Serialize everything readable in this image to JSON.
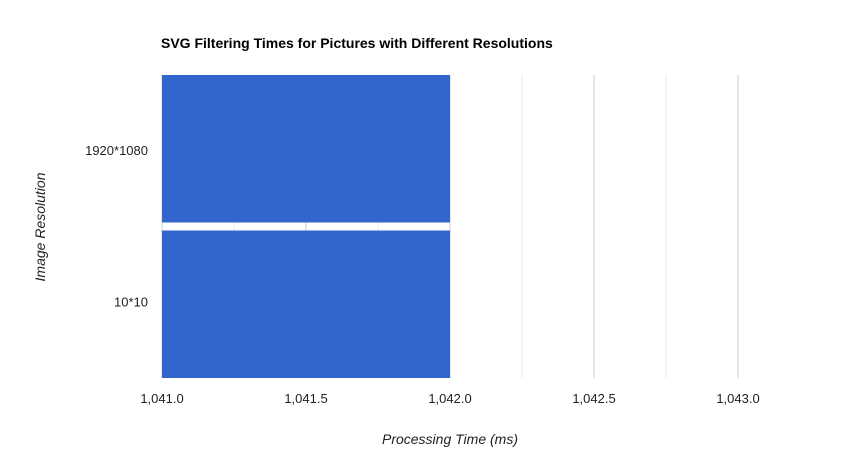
{
  "chart_data": {
    "type": "bar",
    "orientation": "horizontal",
    "title": "SVG Filtering Times for Pictures with Different Resolutions",
    "xlabel": "Processing Time (ms)",
    "ylabel": "Image Resolution",
    "categories": [
      "1920*1080",
      "10*10"
    ],
    "values": [
      1042.0,
      1042.0
    ],
    "xlim": [
      1041.0,
      1043.25
    ],
    "xticks": [
      {
        "value": 1041.0,
        "label": "1,041.0"
      },
      {
        "value": 1041.5,
        "label": "1,041.5"
      },
      {
        "value": 1042.0,
        "label": "1,042.0"
      },
      {
        "value": 1042.5,
        "label": "1,042.5"
      },
      {
        "value": 1043.0,
        "label": "1,043.0"
      }
    ],
    "grid": true,
    "legend": "none",
    "bar_color": "#3366cc",
    "gridline_color": "#cccccc"
  }
}
